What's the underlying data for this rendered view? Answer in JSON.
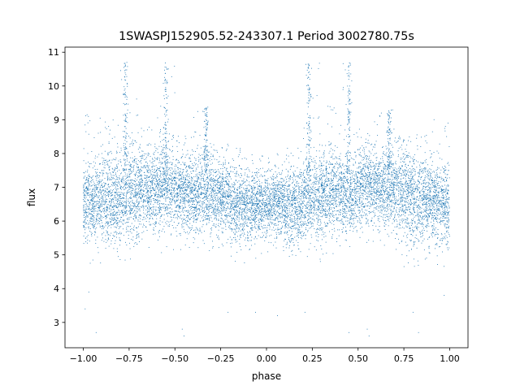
{
  "chart_data": {
    "type": "scatter",
    "title": "1SWASPJ152905.52-243307.1 Period 3002780.75s",
    "xlabel": "phase",
    "ylabel": "flux",
    "xlim": [
      -1.1,
      1.1
    ],
    "ylim": [
      2.25,
      11.15
    ],
    "x_ticks": [
      -1.0,
      -0.75,
      -0.5,
      -0.25,
      0.0,
      0.25,
      0.5,
      0.75,
      1.0
    ],
    "x_tick_labels": [
      "−1.00",
      "−0.75",
      "−0.50",
      "−0.25",
      "0.00",
      "0.25",
      "0.50",
      "0.75",
      "1.00"
    ],
    "y_ticks": [
      3,
      4,
      5,
      6,
      7,
      8,
      9,
      10,
      11
    ],
    "y_tick_labels": [
      "3",
      "4",
      "5",
      "6",
      "7",
      "8",
      "9",
      "10",
      "11"
    ],
    "grid": false,
    "legend": "none",
    "marker_color": "#1f77b4",
    "series": [
      {
        "description_of_points": "dense cloud of several thousand phase-folded photometric samples mirrored at phase ±0.5; estimated envelope per phase segment",
        "segments": [
          {
            "x_range": [
              -1.0,
              -0.9
            ],
            "y_center": 6.6,
            "y_spread": 0.6,
            "y_min": 4.6,
            "y_max": 9.2
          },
          {
            "x_range": [
              -0.9,
              -0.8
            ],
            "y_center": 6.6,
            "y_spread": 0.65,
            "y_min": 4.6,
            "y_max": 9.0
          },
          {
            "x_range": [
              -0.8,
              -0.7
            ],
            "y_center": 6.8,
            "y_spread": 0.7,
            "y_min": 4.8,
            "y_max": 10.7
          },
          {
            "x_range": [
              -0.7,
              -0.6
            ],
            "y_center": 6.9,
            "y_spread": 0.6,
            "y_min": 5.2,
            "y_max": 9.0
          },
          {
            "x_range": [
              -0.6,
              -0.5
            ],
            "y_center": 7.0,
            "y_spread": 0.6,
            "y_min": 5.0,
            "y_max": 10.7
          },
          {
            "x_range": [
              -0.5,
              -0.4
            ],
            "y_center": 6.8,
            "y_spread": 0.55,
            "y_min": 4.6,
            "y_max": 8.6
          },
          {
            "x_range": [
              -0.4,
              -0.3
            ],
            "y_center": 6.8,
            "y_spread": 0.6,
            "y_min": 4.8,
            "y_max": 9.4
          },
          {
            "x_range": [
              -0.3,
              -0.2
            ],
            "y_center": 6.7,
            "y_spread": 0.55,
            "y_min": 4.8,
            "y_max": 8.3
          },
          {
            "x_range": [
              -0.2,
              -0.1
            ],
            "y_center": 6.4,
            "y_spread": 0.55,
            "y_min": 4.4,
            "y_max": 8.2
          },
          {
            "x_range": [
              -0.1,
              0.0
            ],
            "y_center": 6.5,
            "y_spread": 0.5,
            "y_min": 4.8,
            "y_max": 8.0
          },
          {
            "x_range": [
              0.0,
              0.1
            ],
            "y_center": 6.5,
            "y_spread": 0.5,
            "y_min": 4.8,
            "y_max": 8.0
          },
          {
            "x_range": [
              0.1,
              0.2
            ],
            "y_center": 6.4,
            "y_spread": 0.55,
            "y_min": 4.4,
            "y_max": 8.2
          },
          {
            "x_range": [
              0.2,
              0.3
            ],
            "y_center": 6.7,
            "y_spread": 0.6,
            "y_min": 4.8,
            "y_max": 10.7
          },
          {
            "x_range": [
              0.3,
              0.4
            ],
            "y_center": 6.8,
            "y_spread": 0.6,
            "y_min": 4.8,
            "y_max": 9.4
          },
          {
            "x_range": [
              0.4,
              0.5
            ],
            "y_center": 6.8,
            "y_spread": 0.55,
            "y_min": 4.6,
            "y_max": 10.7
          },
          {
            "x_range": [
              0.5,
              0.6
            ],
            "y_center": 7.0,
            "y_spread": 0.6,
            "y_min": 5.0,
            "y_max": 9.0
          },
          {
            "x_range": [
              0.6,
              0.7
            ],
            "y_center": 6.9,
            "y_spread": 0.6,
            "y_min": 5.2,
            "y_max": 9.3
          },
          {
            "x_range": [
              0.7,
              0.8
            ],
            "y_center": 6.8,
            "y_spread": 0.7,
            "y_min": 4.4,
            "y_max": 8.6
          },
          {
            "x_range": [
              0.8,
              0.9
            ],
            "y_center": 6.6,
            "y_spread": 0.65,
            "y_min": 4.6,
            "y_max": 8.6
          },
          {
            "x_range": [
              0.9,
              1.0
            ],
            "y_center": 6.5,
            "y_spread": 0.6,
            "y_min": 4.6,
            "y_max": 9.1
          }
        ],
        "bright_spikes": [
          {
            "x": -0.77,
            "y_top": 10.7
          },
          {
            "x": -0.55,
            "y_top": 10.7
          },
          {
            "x": -0.33,
            "y_top": 9.4
          },
          {
            "x": 0.23,
            "y_top": 10.7
          },
          {
            "x": 0.45,
            "y_top": 10.7
          },
          {
            "x": 0.67,
            "y_top": 9.3
          }
        ],
        "outliers": [
          [
            -0.99,
            3.4
          ],
          [
            -0.97,
            3.9
          ],
          [
            -0.93,
            2.7
          ],
          [
            -0.46,
            2.8
          ],
          [
            -0.45,
            2.6
          ],
          [
            -0.21,
            3.3
          ],
          [
            -0.06,
            3.3
          ],
          [
            0.06,
            3.2
          ],
          [
            0.21,
            3.3
          ],
          [
            0.45,
            2.7
          ],
          [
            0.55,
            2.8
          ],
          [
            0.56,
            2.6
          ],
          [
            0.8,
            3.3
          ],
          [
            0.83,
            2.7
          ],
          [
            0.97,
            3.8
          ]
        ]
      }
    ]
  }
}
